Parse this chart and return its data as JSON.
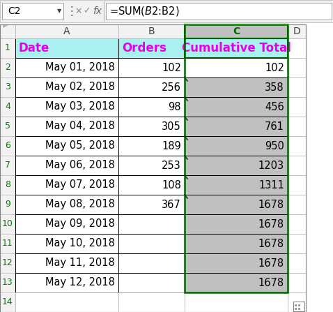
{
  "formula_bar_cell": "C2",
  "formula_bar_formula": "=SUM($B$2:B2)",
  "header_labels": [
    "Date",
    "Orders",
    "Cumulative Total"
  ],
  "dates": [
    "May 01, 2018",
    "May 02, 2018",
    "May 03, 2018",
    "May 04, 2018",
    "May 05, 2018",
    "May 06, 2018",
    "May 07, 2018",
    "May 08, 2018",
    "May 09, 2018",
    "May 10, 2018",
    "May 11, 2018",
    "May 12, 2018"
  ],
  "orders": [
    "102",
    "256",
    "98",
    "305",
    "189",
    "253",
    "108",
    "367",
    "",
    "",
    "",
    ""
  ],
  "cumulative": [
    "102",
    "358",
    "456",
    "761",
    "950",
    "1203",
    "1311",
    "1678",
    "1678",
    "1678",
    "1678",
    "1678"
  ],
  "header_bg": "#aaf0f0",
  "header_text_color": "#e800e8",
  "col_c_bg": "#c0c0c0",
  "col_c_row2_bg": "#ffffff",
  "selected_col_header_bg": "#c0c0c0",
  "selected_col_border": "#006400",
  "row_header_text": "#008000",
  "col_header_text": "#000000",
  "grid_color": "#b0b0b0",
  "background": "#ffffff",
  "figsize": [
    4.78,
    4.47
  ],
  "dpi": 100
}
